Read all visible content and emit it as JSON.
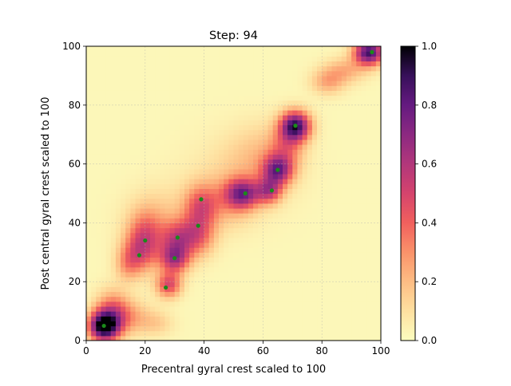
{
  "chart_data": {
    "type": "heatmap",
    "title": "Step: 94",
    "xlabel": "Precentral gyral crest scaled to 100",
    "ylabel": "Post central gyral crest scaled to 100",
    "xlim": [
      0,
      100
    ],
    "ylim": [
      0,
      100
    ],
    "xticks": [
      0,
      20,
      40,
      60,
      80,
      100
    ],
    "yticks": [
      0,
      20,
      40,
      60,
      80,
      100
    ],
    "grid": true,
    "colormap": "magma_r",
    "colorbar": {
      "min": 0.0,
      "max": 1.0,
      "ticks": [
        "0.0",
        "0.2",
        "0.4",
        "0.6",
        "0.8",
        "1.0"
      ]
    },
    "density_blobs": [
      {
        "x": 6,
        "y": 5,
        "amp": 1.0,
        "sx": 3.5,
        "sy": 3.5
      },
      {
        "x": 9,
        "y": 10,
        "amp": 0.35,
        "sx": 4,
        "sy": 5
      },
      {
        "x": 15,
        "y": 8,
        "amp": 0.2,
        "sx": 5,
        "sy": 4
      },
      {
        "x": 24,
        "y": 6,
        "amp": 0.12,
        "sx": 4,
        "sy": 3
      },
      {
        "x": 18,
        "y": 30,
        "amp": 0.3,
        "sx": 4,
        "sy": 5
      },
      {
        "x": 20,
        "y": 36,
        "amp": 0.28,
        "sx": 4,
        "sy": 6
      },
      {
        "x": 14,
        "y": 26,
        "amp": 0.2,
        "sx": 3,
        "sy": 4
      },
      {
        "x": 28,
        "y": 19,
        "amp": 0.45,
        "sx": 3,
        "sy": 3
      },
      {
        "x": 30,
        "y": 28,
        "amp": 0.55,
        "sx": 3.5,
        "sy": 3.5
      },
      {
        "x": 31,
        "y": 35,
        "amp": 0.35,
        "sx": 4,
        "sy": 4
      },
      {
        "x": 38,
        "y": 36,
        "amp": 0.35,
        "sx": 4,
        "sy": 5
      },
      {
        "x": 39,
        "y": 46,
        "amp": 0.35,
        "sx": 4,
        "sy": 5
      },
      {
        "x": 25,
        "y": 40,
        "amp": 0.15,
        "sx": 8,
        "sy": 8
      },
      {
        "x": 53,
        "y": 50,
        "amp": 0.6,
        "sx": 4,
        "sy": 3.5
      },
      {
        "x": 48,
        "y": 47,
        "amp": 0.15,
        "sx": 6,
        "sy": 6
      },
      {
        "x": 62,
        "y": 51,
        "amp": 0.45,
        "sx": 3,
        "sy": 3
      },
      {
        "x": 65,
        "y": 58,
        "amp": 0.6,
        "sx": 3.5,
        "sy": 3.5
      },
      {
        "x": 71,
        "y": 73,
        "amp": 0.85,
        "sx": 3.5,
        "sy": 3.5
      },
      {
        "x": 68,
        "y": 66,
        "amp": 0.25,
        "sx": 4,
        "sy": 5
      },
      {
        "x": 82,
        "y": 88,
        "amp": 0.22,
        "sx": 4,
        "sy": 3
      },
      {
        "x": 96,
        "y": 98,
        "amp": 0.85,
        "sx": 3.5,
        "sy": 3
      },
      {
        "x": 88,
        "y": 92,
        "amp": 0.2,
        "sx": 5,
        "sy": 3
      },
      {
        "x": 60,
        "y": 62,
        "amp": 0.15,
        "sx": 8,
        "sy": 8
      },
      {
        "x": 50,
        "y": 55,
        "amp": 0.08,
        "sx": 12,
        "sy": 10
      }
    ],
    "points": [
      {
        "x": 6,
        "y": 5
      },
      {
        "x": 18,
        "y": 29
      },
      {
        "x": 20,
        "y": 34
      },
      {
        "x": 27,
        "y": 18
      },
      {
        "x": 30,
        "y": 28
      },
      {
        "x": 31,
        "y": 35
      },
      {
        "x": 38,
        "y": 39
      },
      {
        "x": 39,
        "y": 48
      },
      {
        "x": 54,
        "y": 50
      },
      {
        "x": 63,
        "y": 51
      },
      {
        "x": 65,
        "y": 58
      },
      {
        "x": 71,
        "y": 73
      },
      {
        "x": 97,
        "y": 98
      }
    ],
    "point_color": "#1a8a1a",
    "grid_color": "#b0b0b0"
  }
}
